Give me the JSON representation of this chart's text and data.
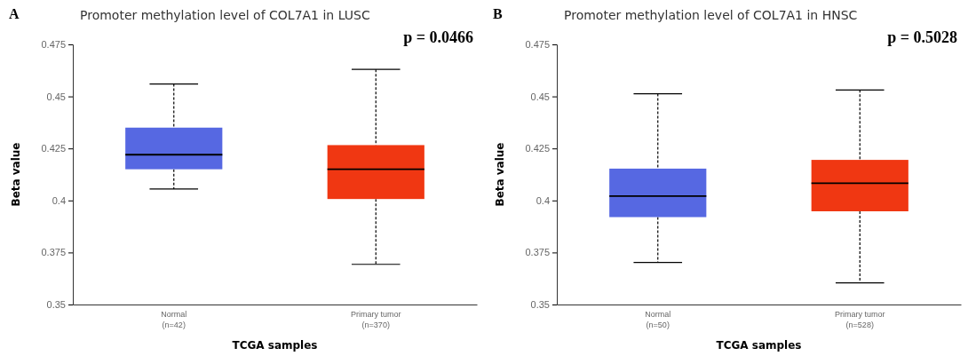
{
  "chart_data": [
    {
      "type": "box",
      "title": "Promoter methylation level of COL7A1 in LUSC",
      "xlabel": "TCGA samples",
      "ylabel": "Beta value",
      "annotations": [
        "A",
        "p = 0.0466"
      ],
      "categories": [
        "Normal\n(n=42)",
        "Primary tumor\n(n=370)"
      ],
      "colors": [
        "#5668e2",
        "#f03712"
      ],
      "boxes": [
        {
          "low": 0.4055,
          "q1": 0.415,
          "median": 0.422,
          "q3": 0.435,
          "high": 0.456
        },
        {
          "low": 0.3693,
          "q1": 0.4007,
          "median": 0.415,
          "q3": 0.4266,
          "high": 0.463
        }
      ],
      "ylim": [
        0.35,
        0.475
      ],
      "yticks": [
        0.35,
        0.375,
        0.4,
        0.425,
        0.45,
        0.475
      ]
    },
    {
      "type": "box",
      "title": "Promoter methylation level of COL7A1 in HNSC",
      "xlabel": "TCGA samples",
      "ylabel": "Beta value",
      "annotations": [
        "B",
        "p = 0.5028"
      ],
      "categories": [
        "Normal\n(n=50)",
        "Primary tumor\n(n=528)"
      ],
      "colors": [
        "#5668e2",
        "#f03712"
      ],
      "boxes": [
        {
          "low": 0.3702,
          "q1": 0.392,
          "median": 0.4021,
          "q3": 0.4153,
          "high": 0.4513
        },
        {
          "low": 0.3604,
          "q1": 0.3948,
          "median": 0.4083,
          "q3": 0.4195,
          "high": 0.4531
        }
      ],
      "ylim": [
        0.35,
        0.475
      ],
      "yticks": [
        0.35,
        0.375,
        0.4,
        0.425,
        0.45,
        0.475
      ]
    }
  ]
}
